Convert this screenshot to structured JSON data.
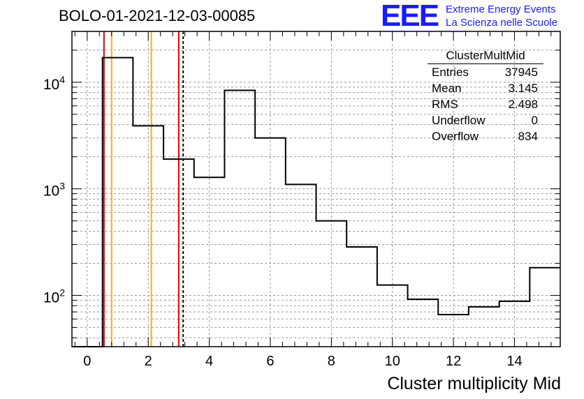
{
  "title": "BOLO-01-2021-12-03-00085",
  "logo": {
    "mark": "EEE",
    "line1": "Extreme Energy Events",
    "line2": "La Scienza nelle Scuole",
    "color": "#1a1aff"
  },
  "stats": {
    "name": "ClusterMultMid",
    "rows": [
      {
        "label": "Entries",
        "value": "37945"
      },
      {
        "label": "Mean",
        "value": "3.145"
      },
      {
        "label": "RMS",
        "value": "2.498"
      },
      {
        "label": "Underflow",
        "value": "0"
      },
      {
        "label": "Overflow",
        "value": "834"
      }
    ]
  },
  "chart_data": {
    "type": "histogram",
    "title": "BOLO-01-2021-12-03-00085",
    "xlabel": "Cluster multiplicity Mid",
    "ylabel": "",
    "yscale": "log",
    "xlim": [
      -0.5,
      15.5
    ],
    "ylim": [
      33,
      30000
    ],
    "grid": true,
    "x_ticks": [
      0,
      2,
      4,
      6,
      8,
      10,
      12,
      14
    ],
    "y_ticks": [
      {
        "value": 100,
        "base": "10",
        "exp": "2"
      },
      {
        "value": 1000,
        "base": "10",
        "exp": "3"
      },
      {
        "value": 10000,
        "base": "10",
        "exp": "4"
      }
    ],
    "bins": [
      {
        "x": 0,
        "count": 0
      },
      {
        "x": 1,
        "count": 17000
      },
      {
        "x": 2,
        "count": 3900
      },
      {
        "x": 3,
        "count": 1900
      },
      {
        "x": 4,
        "count": 1280
      },
      {
        "x": 5,
        "count": 8400
      },
      {
        "x": 6,
        "count": 3000
      },
      {
        "x": 7,
        "count": 1100
      },
      {
        "x": 8,
        "count": 500
      },
      {
        "x": 9,
        "count": 285
      },
      {
        "x": 10,
        "count": 125
      },
      {
        "x": 11,
        "count": 92
      },
      {
        "x": 12,
        "count": 66
      },
      {
        "x": 13,
        "count": 78
      },
      {
        "x": 14,
        "count": 88
      },
      {
        "x": 15,
        "count": 182
      }
    ],
    "vlines": [
      {
        "x": 0.55,
        "color": "#e00000",
        "style": "solid"
      },
      {
        "x": 0.8,
        "color": "#ffb000",
        "style": "solid"
      },
      {
        "x": 2.1,
        "color": "#ffb000",
        "style": "solid"
      },
      {
        "x": 3.0,
        "color": "#e00000",
        "style": "solid"
      },
      {
        "x": 3.145,
        "color": "#000000",
        "style": "dashed"
      }
    ]
  }
}
